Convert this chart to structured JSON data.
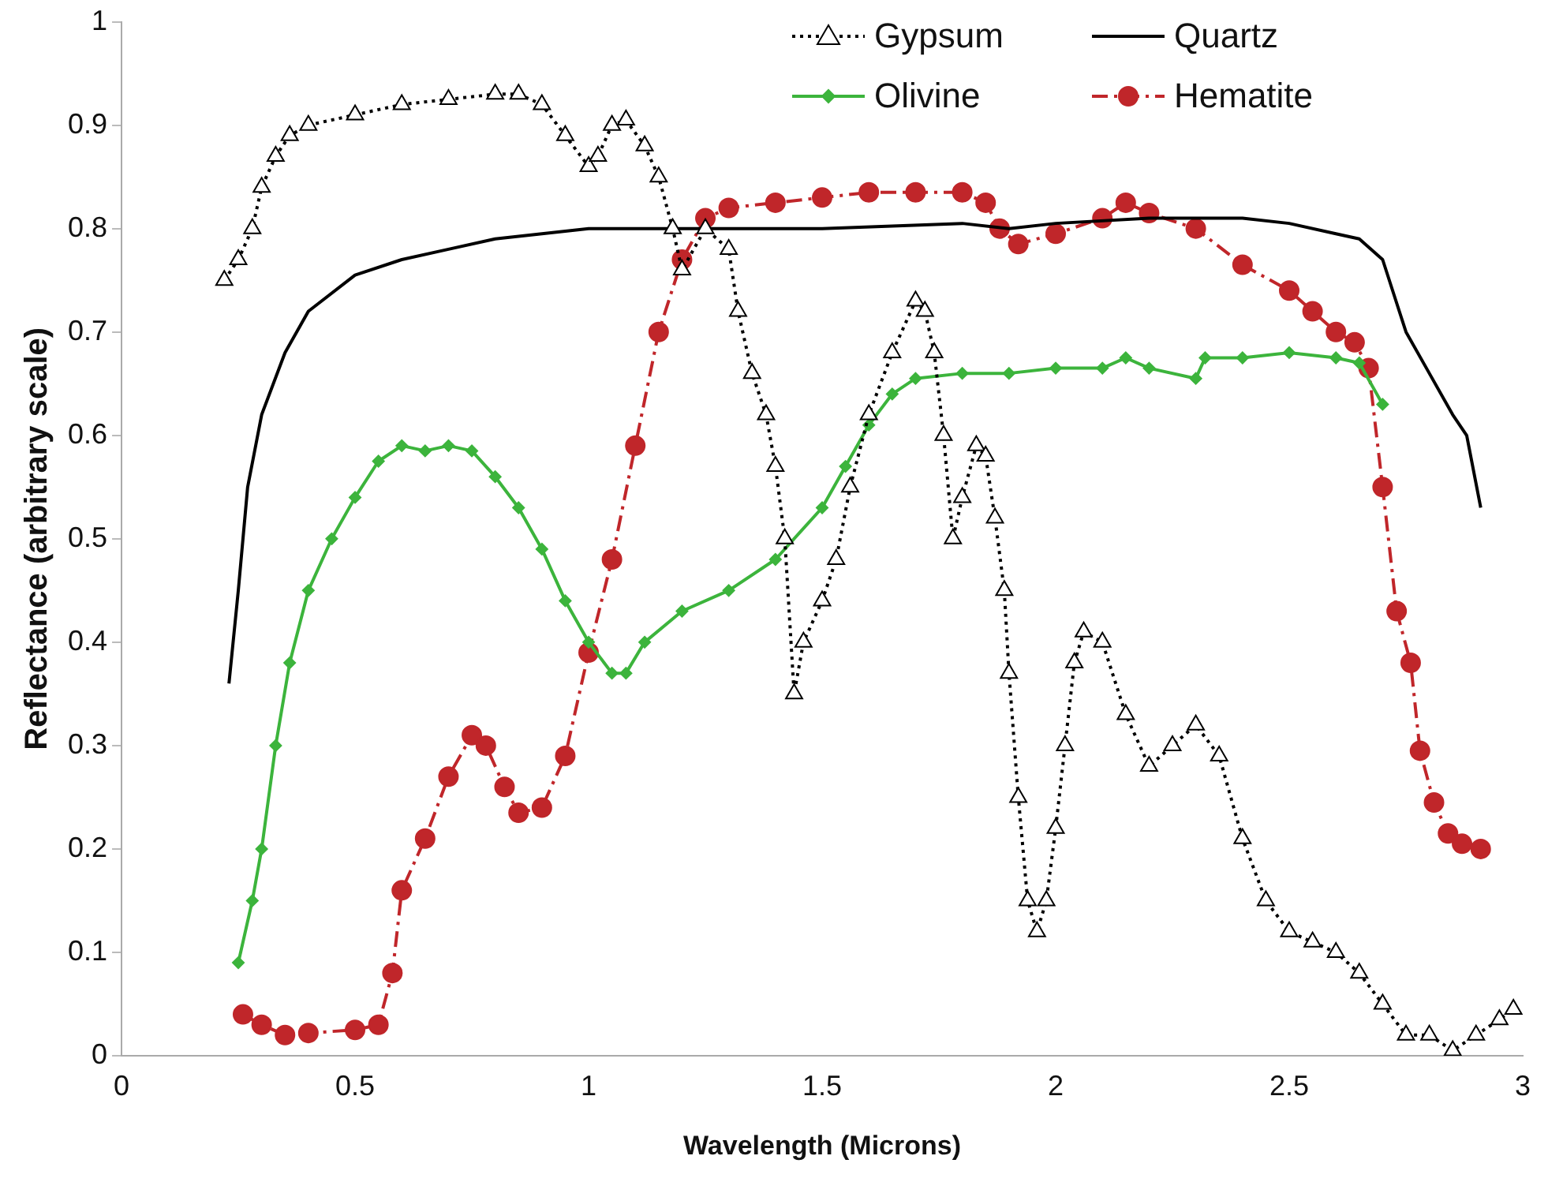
{
  "chart_data": {
    "type": "line",
    "xlabel": "Wavelength (Microns)",
    "ylabel": "Reflectance (arbitrary scale)",
    "xlim": [
      0,
      3
    ],
    "xticks": [
      0,
      0.5,
      1,
      1.5,
      2,
      2.5,
      3
    ],
    "ylim": [
      0,
      1
    ],
    "yticks": [
      0,
      0.1,
      0.2,
      0.3,
      0.4,
      0.5,
      0.6,
      0.7,
      0.8,
      0.9,
      1
    ],
    "grid": false,
    "legend": "top right",
    "series": [
      {
        "name": "Gypsum",
        "color": "#000000",
        "marker": "triangle",
        "line_style": "dotted",
        "x": [
          0.22,
          0.25,
          0.28,
          0.3,
          0.33,
          0.36,
          0.4,
          0.5,
          0.6,
          0.7,
          0.8,
          0.85,
          0.9,
          0.95,
          1.0,
          1.02,
          1.05,
          1.08,
          1.12,
          1.15,
          1.18,
          1.2,
          1.25,
          1.3,
          1.32,
          1.35,
          1.38,
          1.4,
          1.42,
          1.44,
          1.46,
          1.5,
          1.53,
          1.56,
          1.6,
          1.65,
          1.7,
          1.72,
          1.74,
          1.76,
          1.78,
          1.8,
          1.83,
          1.85,
          1.87,
          1.89,
          1.9,
          1.92,
          1.94,
          1.96,
          1.98,
          2.0,
          2.02,
          2.04,
          2.06,
          2.1,
          2.15,
          2.2,
          2.25,
          2.3,
          2.35,
          2.4,
          2.45,
          2.5,
          2.55,
          2.6,
          2.65,
          2.7,
          2.75,
          2.8,
          2.85,
          2.9,
          2.95,
          2.98
        ],
        "values": [
          0.75,
          0.77,
          0.8,
          0.84,
          0.87,
          0.89,
          0.9,
          0.91,
          0.92,
          0.925,
          0.93,
          0.93,
          0.92,
          0.89,
          0.86,
          0.87,
          0.9,
          0.905,
          0.88,
          0.85,
          0.8,
          0.76,
          0.8,
          0.78,
          0.72,
          0.66,
          0.62,
          0.57,
          0.5,
          0.35,
          0.4,
          0.44,
          0.48,
          0.55,
          0.62,
          0.68,
          0.73,
          0.72,
          0.68,
          0.6,
          0.5,
          0.54,
          0.59,
          0.58,
          0.52,
          0.45,
          0.37,
          0.25,
          0.15,
          0.12,
          0.15,
          0.22,
          0.3,
          0.38,
          0.41,
          0.4,
          0.33,
          0.28,
          0.3,
          0.32,
          0.29,
          0.21,
          0.15,
          0.12,
          0.11,
          0.1,
          0.08,
          0.05,
          0.02,
          0.02,
          0.005,
          0.02,
          0.035,
          0.045
        ]
      },
      {
        "name": "Quartz",
        "color": "#000000",
        "marker": "none",
        "line_style": "solid",
        "x": [
          0.23,
          0.25,
          0.27,
          0.3,
          0.35,
          0.4,
          0.5,
          0.6,
          0.7,
          0.8,
          0.9,
          1.0,
          1.5,
          1.8,
          1.9,
          2.0,
          2.2,
          2.4,
          2.5,
          2.6,
          2.65,
          2.7,
          2.75,
          2.8,
          2.85,
          2.88,
          2.91
        ],
        "values": [
          0.36,
          0.45,
          0.55,
          0.62,
          0.68,
          0.72,
          0.755,
          0.77,
          0.78,
          0.79,
          0.795,
          0.8,
          0.8,
          0.805,
          0.8,
          0.805,
          0.81,
          0.81,
          0.805,
          0.795,
          0.79,
          0.77,
          0.7,
          0.66,
          0.62,
          0.6,
          0.53
        ]
      },
      {
        "name": "Olivine",
        "color": "#3cb43c",
        "marker": "diamond",
        "line_style": "solid",
        "x": [
          0.25,
          0.28,
          0.3,
          0.33,
          0.36,
          0.4,
          0.45,
          0.5,
          0.55,
          0.6,
          0.65,
          0.7,
          0.75,
          0.8,
          0.85,
          0.9,
          0.95,
          1.0,
          1.05,
          1.08,
          1.12,
          1.2,
          1.3,
          1.4,
          1.5,
          1.55,
          1.6,
          1.65,
          1.7,
          1.8,
          1.9,
          2.0,
          2.1,
          2.15,
          2.2,
          2.3,
          2.32,
          2.4,
          2.5,
          2.6,
          2.65,
          2.7
        ],
        "values": [
          0.09,
          0.15,
          0.2,
          0.3,
          0.38,
          0.45,
          0.5,
          0.54,
          0.575,
          0.59,
          0.585,
          0.59,
          0.585,
          0.56,
          0.53,
          0.49,
          0.44,
          0.4,
          0.37,
          0.37,
          0.4,
          0.43,
          0.45,
          0.48,
          0.53,
          0.57,
          0.61,
          0.64,
          0.655,
          0.66,
          0.66,
          0.665,
          0.665,
          0.675,
          0.665,
          0.655,
          0.675,
          0.675,
          0.68,
          0.675,
          0.67,
          0.63
        ]
      },
      {
        "name": "Hematite",
        "color": "#c0262a",
        "marker": "circle",
        "line_style": "dashed",
        "x": [
          0.26,
          0.3,
          0.35,
          0.4,
          0.5,
          0.55,
          0.58,
          0.6,
          0.65,
          0.7,
          0.75,
          0.78,
          0.82,
          0.85,
          0.9,
          0.95,
          1.0,
          1.05,
          1.1,
          1.15,
          1.2,
          1.25,
          1.3,
          1.4,
          1.5,
          1.6,
          1.7,
          1.8,
          1.85,
          1.88,
          1.92,
          2.0,
          2.1,
          2.15,
          2.2,
          2.3,
          2.4,
          2.5,
          2.55,
          2.6,
          2.64,
          2.67,
          2.7,
          2.73,
          2.76,
          2.78,
          2.81,
          2.84,
          2.87,
          2.91
        ],
        "values": [
          0.04,
          0.03,
          0.02,
          0.022,
          0.025,
          0.03,
          0.08,
          0.16,
          0.21,
          0.27,
          0.31,
          0.3,
          0.26,
          0.235,
          0.24,
          0.29,
          0.39,
          0.48,
          0.59,
          0.7,
          0.77,
          0.81,
          0.82,
          0.825,
          0.83,
          0.835,
          0.835,
          0.835,
          0.825,
          0.8,
          0.785,
          0.795,
          0.81,
          0.825,
          0.815,
          0.8,
          0.765,
          0.74,
          0.72,
          0.7,
          0.69,
          0.665,
          0.55,
          0.43,
          0.38,
          0.295,
          0.245,
          0.215,
          0.205,
          0.2
        ]
      }
    ]
  }
}
